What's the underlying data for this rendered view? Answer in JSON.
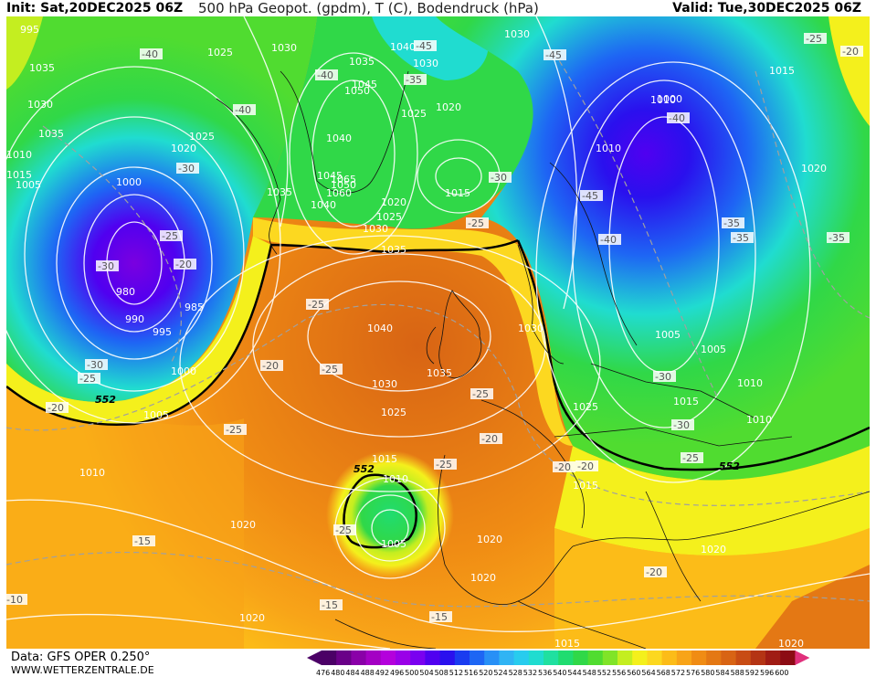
{
  "header": {
    "init": "Init: Sat,20DEC2025 06Z",
    "title": "500 hPa Geopot. (gpdm), T (C), Bodendruck (hPa)",
    "valid": "Valid: Tue,30DEC2025 06Z"
  },
  "footer": {
    "data": "Data: GFS OPER 0.250°",
    "site": "WWW.WETTERZENTRALE.DE"
  },
  "colorbar": {
    "ticks": [
      "476",
      "480",
      "484",
      "488",
      "492",
      "496",
      "500",
      "504",
      "508",
      "512",
      "516",
      "520",
      "524",
      "528",
      "532",
      "536",
      "540",
      "544",
      "548",
      "552",
      "556",
      "560",
      "564",
      "568",
      "572",
      "576",
      "580",
      "584",
      "588",
      "592",
      "596",
      "600"
    ],
    "colors": [
      "#4b0066",
      "#6a0088",
      "#8a00a8",
      "#a400c4",
      "#b400dc",
      "#9a00e8",
      "#7a00f0",
      "#5000f0",
      "#2a10ee",
      "#1a3cf0",
      "#1e66f4",
      "#2890f6",
      "#30b4f4",
      "#28ccee",
      "#20dcd0",
      "#20e0a0",
      "#20dc70",
      "#30d848",
      "#50dc30",
      "#80e428",
      "#c4ee20",
      "#f4f01c",
      "#fcd820",
      "#fcbc18",
      "#f8a418",
      "#f08c14",
      "#e47814",
      "#d86414",
      "#c84c14",
      "#b43414",
      "#a01c14",
      "#8c0c14"
    ]
  },
  "pressure_labels": [
    "1035",
    "1025",
    "1030",
    "1040",
    "1030",
    "1035",
    "1030",
    "1045",
    "1050",
    "1025",
    "1020",
    "1005",
    "1000",
    "1010",
    "1015",
    "1020",
    "1025",
    "1030",
    "1035",
    "1040",
    "1045",
    "1050",
    "1060",
    "1065",
    "1035",
    "1040",
    "1030",
    "1025",
    "1020",
    "1035",
    "1015",
    "1010",
    "1005",
    "995",
    "990",
    "980",
    "985",
    "995",
    "1000",
    "1005",
    "1010",
    "1040",
    "1035",
    "1030",
    "1025",
    "1015",
    "1010",
    "1005",
    "1020",
    "1020",
    "1020",
    "1015",
    "1020",
    "1020",
    "1025",
    "1030",
    "1010",
    "1010",
    "1005",
    "1015",
    "1010",
    "1000",
    "1015",
    "1020",
    "1020",
    "1015"
  ],
  "temp_labels": [
    "-40",
    "-45",
    "-40",
    "-35",
    "-40",
    "-45",
    "-40",
    "-30",
    "-25",
    "-25",
    "-30",
    "-35",
    "-40",
    "-45",
    "-25",
    "-20",
    "-20",
    "-25",
    "-30",
    "-25",
    "-20",
    "-25",
    "-20",
    "-20",
    "-25",
    "-15",
    "-10",
    "-15",
    "-15",
    "-25",
    "-20",
    "-20",
    "-25",
    "-35",
    "-30",
    "-25",
    "-30",
    "-35",
    "-30",
    "-25",
    "-20"
  ],
  "contour_labels": [
    "552",
    "552",
    "552"
  ]
}
